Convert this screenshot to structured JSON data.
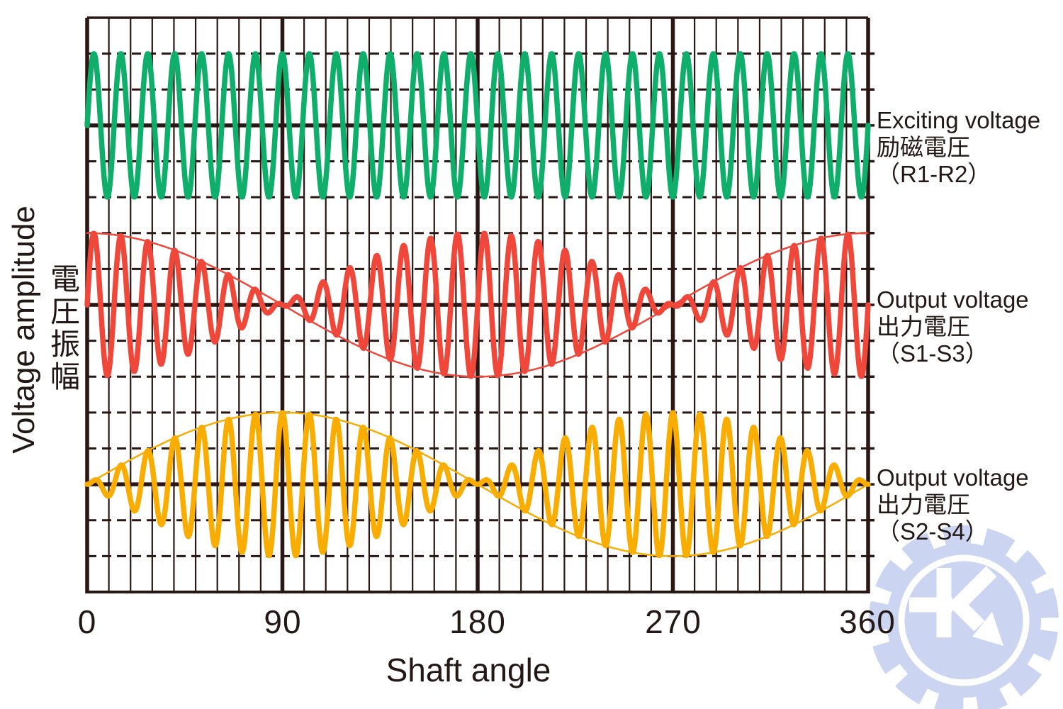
{
  "figure": {
    "x_axis_title": "Shaft angle",
    "y_axis_title_en": "Voltage amplitude",
    "y_axis_title_ja": "電圧振幅",
    "x_ticks": [
      "0",
      "90",
      "180",
      "270",
      "360"
    ]
  },
  "series_labels": {
    "exciting": {
      "en": "Exciting voltage",
      "ja": "励磁電圧",
      "pins": "（R1-R2）"
    },
    "output_s1s3": {
      "en": "Output voltage",
      "ja": "出力電圧",
      "pins": "（S1-S3）"
    },
    "output_s2s4": {
      "en": "Output voltage",
      "ja": "出力電圧",
      "pins": "（S2-S4）"
    }
  },
  "colors": {
    "ink": "#2a1714",
    "exciting_green": "#0fae6a",
    "output_red": "#f0473b",
    "output_yellow": "#f8ad00",
    "watermark_blue": "#cbd5f1",
    "background": "#ffffff"
  },
  "watermark": {
    "icon": "gear-k-logo"
  },
  "chart_data": {
    "type": "line",
    "title": "",
    "xlabel": "Shaft angle",
    "ylabel": "Voltage amplitude 電圧振幅",
    "x_ticks_deg": [
      0,
      90,
      180,
      270,
      360
    ],
    "x_range_deg": [
      0,
      360
    ],
    "x_minor_grid_step_deg": 10,
    "grid": {
      "rows_total": 16,
      "solid_center_rows": [
        3,
        8,
        13
      ],
      "dashed_rows": [
        1,
        2,
        4,
        5,
        6,
        7,
        9,
        10,
        11,
        12,
        14,
        15
      ],
      "amplitude_in_rows": 2
    },
    "carrier_cycles_per_360deg": 29,
    "series": [
      {
        "name": "Exciting voltage 励磁電圧 (R1-R2)",
        "color": "#0fae6a",
        "band": "top",
        "envelope": "constant",
        "envelope_values_at_ticks": [
          1,
          1,
          1,
          1,
          1
        ],
        "formula": "sin(carrier)",
        "show_envelope_line": false
      },
      {
        "name": "Output voltage 出力電圧 (S1-S3)",
        "color": "#f0473b",
        "band": "middle",
        "envelope": "cos",
        "envelope_values_at_ticks": [
          1,
          0,
          -1,
          0,
          1
        ],
        "formula": "cos(shaft angle) × sin(carrier)",
        "show_envelope_line": true
      },
      {
        "name": "Output voltage 出力電圧 (S2-S4)",
        "color": "#f8ad00",
        "band": "bottom",
        "envelope": "sin",
        "envelope_values_at_ticks": [
          0,
          1,
          0,
          -1,
          0
        ],
        "formula": "sin(shaft angle) × sin(carrier)",
        "show_envelope_line": true
      }
    ],
    "legend_position": "right"
  }
}
